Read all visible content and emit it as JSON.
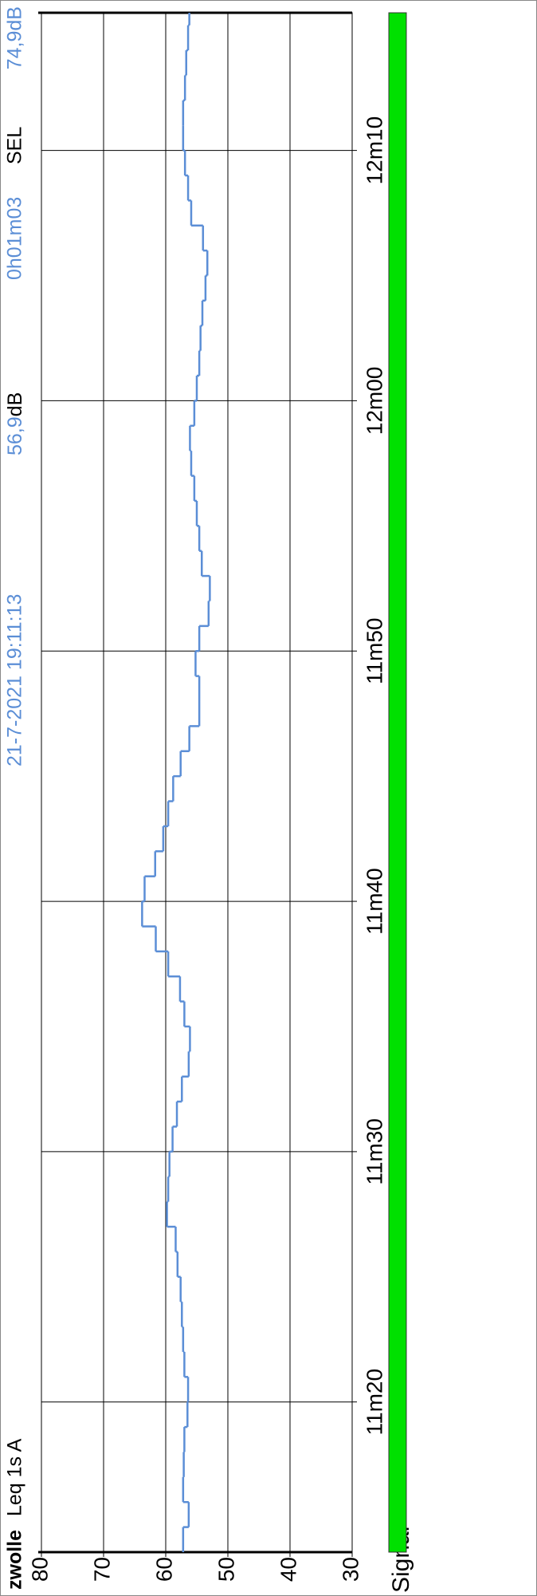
{
  "chart_data": {
    "type": "step",
    "title": "zwolle",
    "measure": "Leq 1s A",
    "datetime": "21-7-2021 19:11:13",
    "leq": "56,9",
    "leq_unit": "dB",
    "duration": "0h01m03",
    "sel_label": "SEL",
    "sel": "74,9dB",
    "signal_label": "Signal",
    "color": "#5b8ed6",
    "signal_color": "#00e000",
    "x": [
      674,
      675,
      676,
      677,
      678,
      679,
      680,
      681,
      682,
      683,
      684,
      685,
      686,
      687,
      688,
      689,
      690,
      691,
      692,
      693,
      694,
      695,
      696,
      697,
      698,
      699,
      700,
      701,
      702,
      703,
      704,
      705,
      706,
      707,
      708,
      709,
      710,
      711,
      712,
      713,
      714,
      715,
      716,
      717,
      718,
      719,
      720,
      721,
      722,
      723,
      724,
      725,
      726,
      727,
      728,
      729,
      730,
      731,
      732,
      733,
      734,
      735
    ],
    "values": [
      57.2,
      56.3,
      57.2,
      57.1,
      57.0,
      56.5,
      56.4,
      57.0,
      57.2,
      57.4,
      57.6,
      58.1,
      58.4,
      59.8,
      59.6,
      59.4,
      58.9,
      58.2,
      57.4,
      56.3,
      56.1,
      57.0,
      57.7,
      59.6,
      61.6,
      63.8,
      63.4,
      61.7,
      60.4,
      59.6,
      58.8,
      57.6,
      56.2,
      54.6,
      54.6,
      55.2,
      54.6,
      53.1,
      52.9,
      54.2,
      54.6,
      55.0,
      55.4,
      55.9,
      56.1,
      55.4,
      55.0,
      54.6,
      54.4,
      54.1,
      53.6,
      53.3,
      54.0,
      55.9,
      56.4,
      56.9,
      57.2,
      57.2,
      56.9,
      56.7,
      56.4,
      56.2
    ],
    "xlim": [
      674,
      735.5
    ],
    "xticks": [
      {
        "value": 680,
        "label": "11m20"
      },
      {
        "value": 690,
        "label": "11m30"
      },
      {
        "value": 700,
        "label": "11m40"
      },
      {
        "value": 710,
        "label": "11m50"
      },
      {
        "value": 720,
        "label": "12m00"
      },
      {
        "value": 730,
        "label": "12m10"
      }
    ],
    "ylim": [
      30,
      80
    ],
    "yticks": [
      30,
      40,
      50,
      60,
      70,
      80
    ],
    "grid": true
  }
}
